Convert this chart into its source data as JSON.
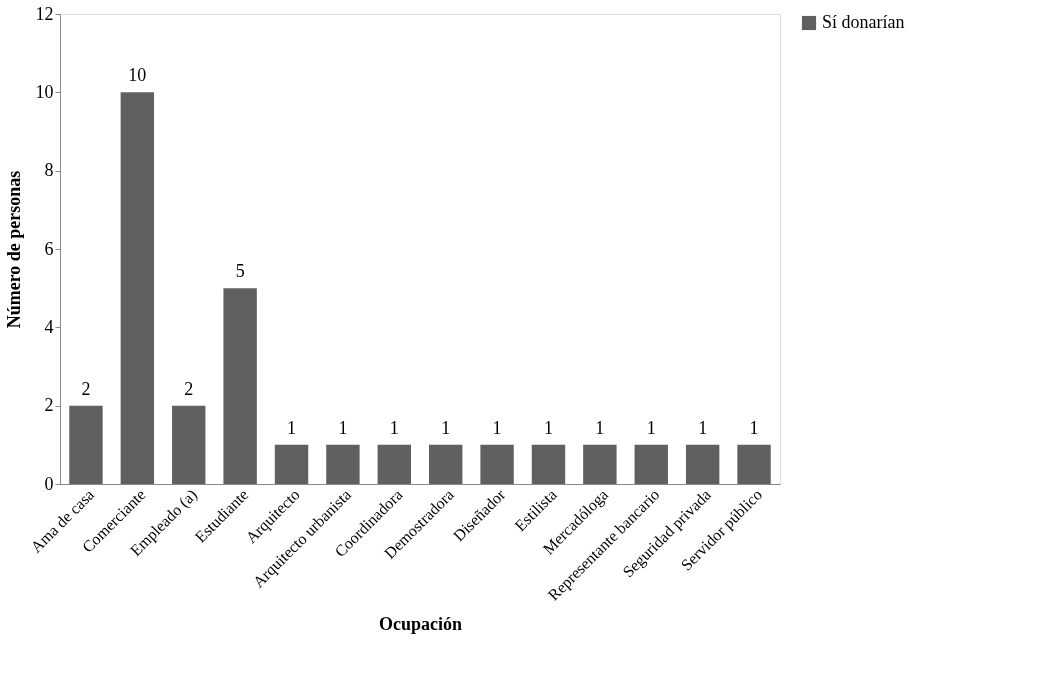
{
  "chart_data": {
    "type": "bar",
    "xlabel": "Ocupación",
    "ylabel": "Número de personas",
    "categories": [
      "Ama de casa",
      "Comerciante",
      "Empleado (a)",
      "Estudiante",
      "Arquitecto",
      "Arquitecto urbanista",
      "Coordinadora",
      "Demostradora",
      "Diseñador",
      "Estilista",
      "Mercadóloga",
      "Representante bancario",
      "Seguridad privada",
      "Servidor público"
    ],
    "series": [
      {
        "name": "Sí donarían",
        "color": "#606060",
        "values": [
          2,
          10,
          2,
          5,
          1,
          1,
          1,
          1,
          1,
          1,
          1,
          1,
          1,
          1
        ]
      }
    ],
    "ylim": [
      0,
      12
    ],
    "yticks": [
      0,
      2,
      4,
      6,
      8,
      10,
      12
    ],
    "grid": false,
    "legend": "right",
    "data_labels": true
  }
}
